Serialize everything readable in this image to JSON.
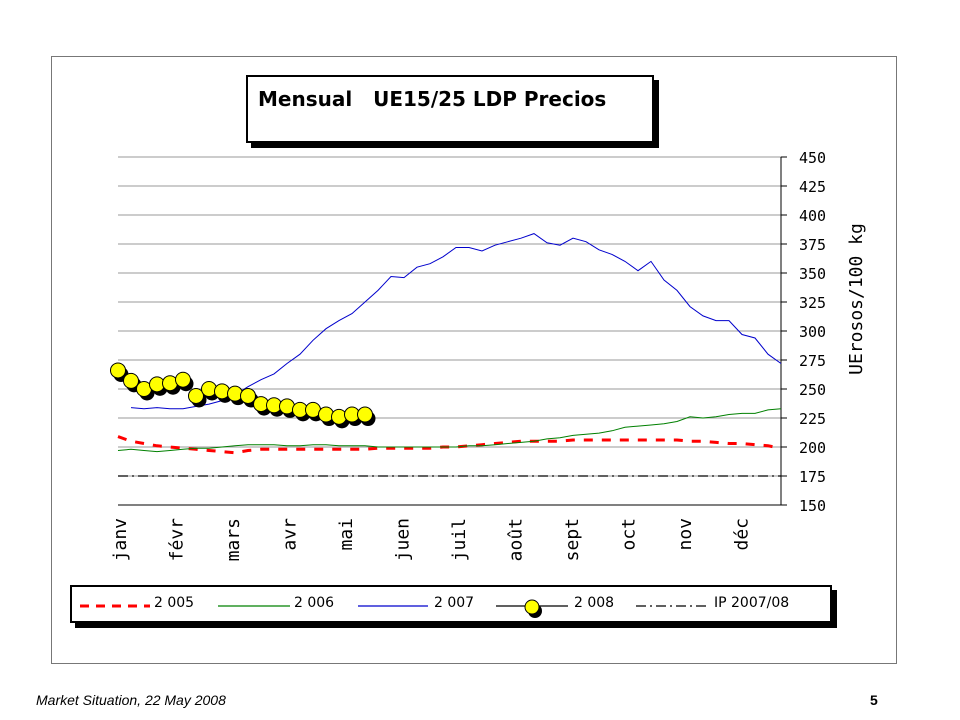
{
  "chart_data": {
    "type": "line",
    "title": "Mensual   UE15/25 LDP Precios",
    "ylabel": "UErosos/100 kg",
    "ylim": [
      150,
      450
    ],
    "yticks": [
      150,
      175,
      200,
      225,
      250,
      275,
      300,
      325,
      350,
      375,
      400,
      425,
      450
    ],
    "y_axis_side": "right",
    "grid": "horizontal",
    "categories": [
      "janv",
      "févr",
      "mars",
      "avr",
      "mai",
      "juen",
      "juil",
      "août",
      "sept",
      "oct",
      "nov",
      "déc"
    ],
    "weeks_per_year": 52,
    "legend_position": "bottom",
    "series": [
      {
        "name": "2 005",
        "color": "#ff0000",
        "style": "dashed-thick",
        "x": [
          1,
          2,
          3,
          4,
          5,
          6,
          7,
          8,
          9,
          10,
          11,
          12,
          13,
          14,
          15,
          16,
          17,
          18,
          19,
          20,
          21,
          22,
          23,
          24,
          25,
          26,
          27,
          28,
          29,
          30,
          31,
          32,
          33,
          34,
          35,
          36,
          37,
          38,
          39,
          40,
          41,
          42,
          43,
          44,
          45,
          46,
          47,
          48,
          49,
          50,
          51,
          52
        ],
        "values": [
          209,
          205,
          203,
          201,
          200,
          199,
          198,
          197,
          196,
          195,
          197,
          198,
          198,
          198,
          198,
          198,
          198,
          198,
          198,
          198,
          199,
          199,
          199,
          199,
          199,
          200,
          200,
          201,
          202,
          203,
          204,
          205,
          205,
          205,
          205,
          206,
          206,
          206,
          206,
          206,
          206,
          206,
          206,
          206,
          205,
          205,
          204,
          203,
          203,
          202,
          201,
          199
        ]
      },
      {
        "name": "2 006",
        "color": "#008000",
        "style": "solid",
        "x": [
          1,
          2,
          3,
          4,
          5,
          6,
          7,
          8,
          9,
          10,
          11,
          12,
          13,
          14,
          15,
          16,
          17,
          18,
          19,
          20,
          21,
          22,
          23,
          24,
          25,
          26,
          27,
          28,
          29,
          30,
          31,
          32,
          33,
          34,
          35,
          36,
          37,
          38,
          39,
          40,
          41,
          42,
          43,
          44,
          45,
          46,
          47,
          48,
          49,
          50,
          51,
          52
        ],
        "values": [
          197,
          198,
          197,
          196,
          197,
          198,
          199,
          199,
          200,
          201,
          202,
          202,
          202,
          201,
          201,
          202,
          202,
          201,
          201,
          201,
          200,
          200,
          200,
          200,
          200,
          200,
          200,
          201,
          201,
          202,
          203,
          204,
          205,
          207,
          208,
          210,
          211,
          212,
          214,
          217,
          218,
          219,
          220,
          222,
          226,
          225,
          226,
          228,
          229,
          229,
          232,
          233
        ]
      },
      {
        "name": "2 007",
        "color": "#0000cc",
        "style": "solid",
        "x": [
          2,
          3,
          4,
          5,
          6,
          7,
          8,
          9,
          10,
          11,
          12,
          13,
          14,
          15,
          16,
          17,
          18,
          19,
          20,
          21,
          22,
          23,
          24,
          25,
          26,
          27,
          28,
          29,
          30,
          31,
          32,
          33,
          34,
          35,
          36,
          37,
          38,
          39,
          40,
          41,
          42,
          43,
          44,
          45,
          46,
          47,
          48,
          49,
          50,
          51,
          52
        ],
        "values": [
          234,
          233,
          234,
          233,
          233,
          235,
          237,
          240,
          245,
          252,
          258,
          263,
          272,
          280,
          292,
          302,
          309,
          315,
          325,
          335,
          347,
          346,
          355,
          358,
          364,
          372,
          372,
          369,
          374,
          377,
          380,
          384,
          376,
          374,
          380,
          377,
          370,
          366,
          360,
          352,
          360,
          344,
          335,
          321,
          313,
          309,
          309,
          297,
          294,
          280,
          272
        ]
      },
      {
        "name": "2 008",
        "color": "#ffff00",
        "style": "circle-markers",
        "x": [
          1,
          2,
          3,
          4,
          5,
          6,
          7,
          8,
          9,
          10,
          11,
          12,
          13,
          14,
          15,
          16,
          17,
          18,
          19,
          20
        ],
        "values": [
          266,
          257,
          250,
          254,
          255,
          258,
          244,
          250,
          248,
          246,
          244,
          237,
          236,
          235,
          232,
          232,
          228,
          226,
          228,
          228
        ]
      },
      {
        "name": "IP 2007/08",
        "color": "#000000",
        "style": "dash-dot",
        "x": [
          1,
          52
        ],
        "values": [
          175,
          175
        ]
      }
    ]
  },
  "footer": {
    "source_text": "Market Situation, 22 May 2008",
    "page_number": "5"
  }
}
